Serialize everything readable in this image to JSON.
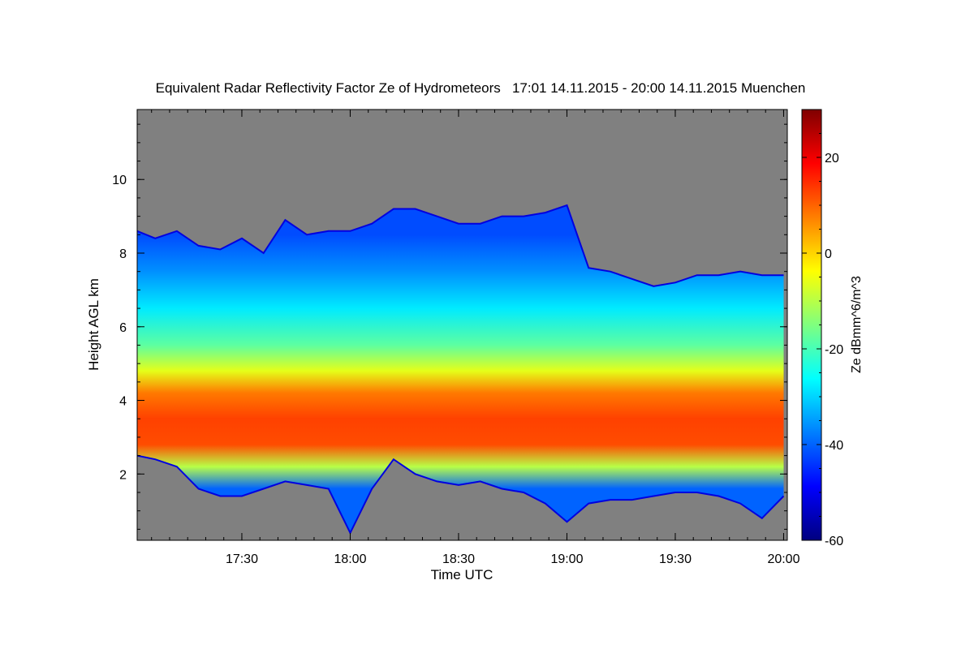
{
  "chart_data": {
    "type": "heatmap",
    "title": "Equivalent Radar Reflectivity Factor Ze of Hydrometeors   17:01 14.11.2015 - 20:00 14.11.2015 Muenchen",
    "xlabel": "Time UTC",
    "ylabel": "Height AGL km",
    "colorbar_label": "Ze dBmm^6/m^3",
    "x_range_hours": [
      17.017,
      20.017
    ],
    "y_range_km": [
      0.2,
      11.9
    ],
    "clim": [
      -60,
      30
    ],
    "x_ticks": [
      {
        "value": 17.5,
        "label": "17:30"
      },
      {
        "value": 18.0,
        "label": "18:00"
      },
      {
        "value": 18.5,
        "label": "18:30"
      },
      {
        "value": 19.0,
        "label": "19:00"
      },
      {
        "value": 19.5,
        "label": "19:30"
      },
      {
        "value": 20.0,
        "label": "20:00"
      }
    ],
    "y_ticks": [
      {
        "value": 2,
        "label": "2"
      },
      {
        "value": 4,
        "label": "4"
      },
      {
        "value": 6,
        "label": "6"
      },
      {
        "value": 8,
        "label": "8"
      },
      {
        "value": 10,
        "label": "10"
      }
    ],
    "colorbar_ticks": [
      {
        "value": 20,
        "label": "20"
      },
      {
        "value": 0,
        "label": "0"
      },
      {
        "value": -20,
        "label": "-20"
      },
      {
        "value": -40,
        "label": "-40"
      },
      {
        "value": -60,
        "label": "-60"
      }
    ],
    "background_color": "#808080",
    "colormap": [
      "#00007f",
      "#0000ff",
      "#007fff",
      "#00ffff",
      "#7fff7f",
      "#ffff00",
      "#ff7f00",
      "#ff0000",
      "#7f0000"
    ],
    "cloud_top_km": [
      [
        17.0,
        8.6
      ],
      [
        17.1,
        8.4
      ],
      [
        17.2,
        8.6
      ],
      [
        17.3,
        8.2
      ],
      [
        17.4,
        8.1
      ],
      [
        17.5,
        8.4
      ],
      [
        17.6,
        8.0
      ],
      [
        17.7,
        8.9
      ],
      [
        17.8,
        8.5
      ],
      [
        17.9,
        8.6
      ],
      [
        18.0,
        8.6
      ],
      [
        18.1,
        8.8
      ],
      [
        18.2,
        9.2
      ],
      [
        18.3,
        9.2
      ],
      [
        18.4,
        9.0
      ],
      [
        18.5,
        8.8
      ],
      [
        18.6,
        8.8
      ],
      [
        18.7,
        9.0
      ],
      [
        18.8,
        9.0
      ],
      [
        18.9,
        9.1
      ],
      [
        19.0,
        9.3
      ],
      [
        19.1,
        7.6
      ],
      [
        19.2,
        7.5
      ],
      [
        19.3,
        7.3
      ],
      [
        19.4,
        7.1
      ],
      [
        19.5,
        7.2
      ],
      [
        19.6,
        7.4
      ],
      [
        19.7,
        7.4
      ],
      [
        19.8,
        7.5
      ],
      [
        19.9,
        7.4
      ],
      [
        20.0,
        7.4
      ]
    ],
    "cloud_base_km": [
      [
        17.0,
        2.5
      ],
      [
        17.1,
        2.4
      ],
      [
        17.2,
        2.2
      ],
      [
        17.3,
        1.6
      ],
      [
        17.4,
        1.4
      ],
      [
        17.5,
        1.4
      ],
      [
        17.6,
        1.6
      ],
      [
        17.7,
        1.8
      ],
      [
        17.8,
        1.7
      ],
      [
        17.9,
        1.6
      ],
      [
        18.0,
        0.4
      ],
      [
        18.1,
        1.6
      ],
      [
        18.2,
        2.4
      ],
      [
        18.3,
        2.0
      ],
      [
        18.4,
        1.8
      ],
      [
        18.5,
        1.7
      ],
      [
        18.6,
        1.8
      ],
      [
        18.7,
        1.6
      ],
      [
        18.8,
        1.5
      ],
      [
        18.9,
        1.2
      ],
      [
        19.0,
        0.7
      ],
      [
        19.1,
        1.2
      ],
      [
        19.2,
        1.3
      ],
      [
        19.3,
        1.3
      ],
      [
        19.4,
        1.4
      ],
      [
        19.5,
        1.5
      ],
      [
        19.6,
        1.5
      ],
      [
        19.7,
        1.4
      ],
      [
        19.8,
        1.2
      ],
      [
        19.9,
        0.8
      ],
      [
        20.0,
        1.4
      ]
    ],
    "reflectivity_profile": [
      {
        "height_km": 8.5,
        "ze_dbz": -42
      },
      {
        "height_km": 7.5,
        "ze_dbz": -36
      },
      {
        "height_km": 6.5,
        "ze_dbz": -28
      },
      {
        "height_km": 5.5,
        "ze_dbz": -18
      },
      {
        "height_km": 4.8,
        "ze_dbz": -6
      },
      {
        "height_km": 4.2,
        "ze_dbz": 8
      },
      {
        "height_km": 3.5,
        "ze_dbz": 13
      },
      {
        "height_km": 2.8,
        "ze_dbz": 12
      },
      {
        "height_km": 2.2,
        "ze_dbz": -10
      },
      {
        "height_km": 1.6,
        "ze_dbz": -40
      }
    ]
  }
}
